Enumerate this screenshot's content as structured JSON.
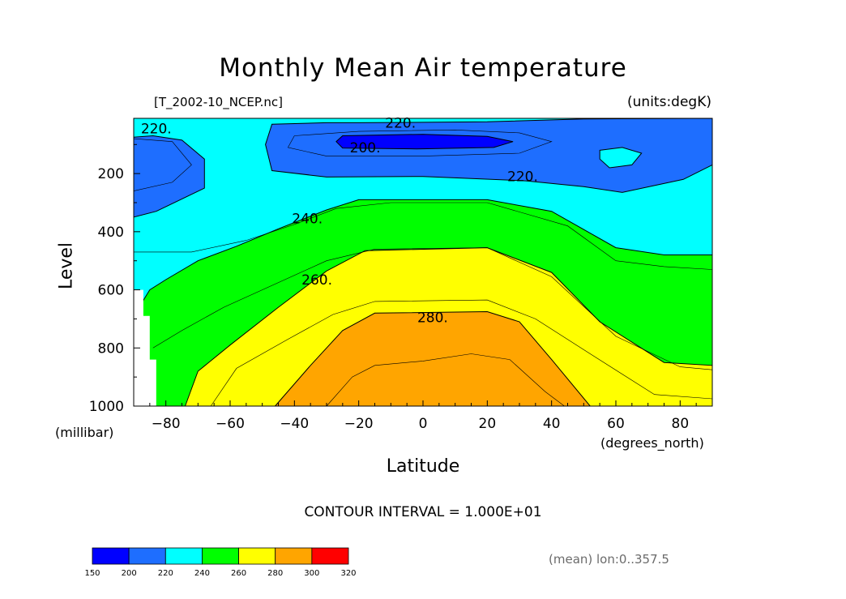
{
  "chart_data": {
    "type": "contour",
    "title": "Monthly Mean Air temperature",
    "dataset_label": "[T_2002-10_NCEP.nc]",
    "units_label": "(units:degK)",
    "xlabel": "Latitude",
    "x_unit_label": "(degrees_north)",
    "ylabel": "Level",
    "y_unit_label": "(millibar)",
    "xlim": [
      -90,
      90
    ],
    "ylim": [
      1000,
      10
    ],
    "xticks": [
      -80,
      -60,
      -40,
      -20,
      0,
      20,
      40,
      60,
      80
    ],
    "yticks": [
      200,
      400,
      600,
      800,
      1000
    ],
    "contour_interval_text": "CONTOUR INTERVAL = 1.000E+01",
    "footnote": "(mean) lon:0..357.5",
    "color_levels": [
      {
        "min": 150,
        "max": 200,
        "color": "#0000ff"
      },
      {
        "min": 200,
        "max": 220,
        "color": "#1e6eff"
      },
      {
        "min": 220,
        "max": 240,
        "color": "#00ffff"
      },
      {
        "min": 240,
        "max": 260,
        "color": "#00ff00"
      },
      {
        "min": 260,
        "max": 280,
        "color": "#ffff00"
      },
      {
        "min": 280,
        "max": 300,
        "color": "#ffa500"
      },
      {
        "min": 300,
        "max": 320,
        "color": "#ff0000"
      }
    ],
    "colorbar_ticks": [
      150,
      200,
      220,
      240,
      260,
      280,
      300,
      320
    ],
    "contour_labels": [
      {
        "text": "220.",
        "x": -83,
        "y": 45
      },
      {
        "text": "220.",
        "x": -7,
        "y": 25
      },
      {
        "text": "200.",
        "x": -18,
        "y": 110
      },
      {
        "text": "220.",
        "x": 31,
        "y": 210
      },
      {
        "text": "240.",
        "x": -36,
        "y": 355
      },
      {
        "text": "260.",
        "x": -33,
        "y": 565
      },
      {
        "text": "280.",
        "x": 3,
        "y": 695
      }
    ],
    "regions": [
      {
        "level": 220,
        "points": [
          [
            -90,
            10
          ],
          [
            90,
            10
          ],
          [
            90,
            1000
          ],
          [
            -90,
            1000
          ]
        ]
      },
      {
        "level": 200,
        "points": [
          [
            -90,
            75
          ],
          [
            -84,
            70
          ],
          [
            -75,
            85
          ],
          [
            -68,
            150
          ],
          [
            -68,
            250
          ],
          [
            -83,
            330
          ],
          [
            -90,
            350
          ]
        ]
      },
      {
        "level": 200,
        "points": [
          [
            -47,
            30
          ],
          [
            -30,
            25
          ],
          [
            -20,
            25
          ],
          [
            20,
            22
          ],
          [
            50,
            12
          ],
          [
            90,
            10
          ],
          [
            90,
            170
          ],
          [
            81,
            220
          ],
          [
            62,
            265
          ],
          [
            50,
            245
          ],
          [
            32,
            225
          ],
          [
            0,
            210
          ],
          [
            -30,
            212
          ],
          [
            -47,
            190
          ],
          [
            -49,
            100
          ]
        ]
      },
      {
        "level": 220,
        "points": [
          [
            55,
            120
          ],
          [
            62,
            110
          ],
          [
            68,
            130
          ],
          [
            65,
            170
          ],
          [
            58,
            180
          ],
          [
            55,
            150
          ]
        ]
      },
      {
        "level": 150,
        "points": [
          [
            -25,
            70
          ],
          [
            0,
            65
          ],
          [
            20,
            72
          ],
          [
            28,
            90
          ],
          [
            22,
            110
          ],
          [
            -2,
            115
          ],
          [
            -25,
            112
          ],
          [
            -27,
            90
          ]
        ]
      },
      {
        "level": 240,
        "points": [
          [
            -90,
            690
          ],
          [
            -85,
            600
          ],
          [
            -80,
            565
          ],
          [
            -70,
            500
          ],
          [
            -58,
            450
          ],
          [
            -45,
            390
          ],
          [
            -30,
            325
          ],
          [
            -20,
            290
          ],
          [
            20,
            290
          ],
          [
            40,
            330
          ],
          [
            60,
            455
          ],
          [
            75,
            480
          ],
          [
            90,
            480
          ],
          [
            90,
            1000
          ],
          [
            -90,
            1000
          ]
        ]
      },
      {
        "level": 260,
        "points": [
          [
            -74,
            1000
          ],
          [
            -70,
            880
          ],
          [
            -60,
            790
          ],
          [
            -45,
            660
          ],
          [
            -30,
            535
          ],
          [
            -18,
            465
          ],
          [
            20,
            455
          ],
          [
            40,
            540
          ],
          [
            55,
            710
          ],
          [
            75,
            850
          ],
          [
            90,
            860
          ],
          [
            90,
            1000
          ]
        ]
      },
      {
        "level": 280,
        "points": [
          [
            -46,
            1000
          ],
          [
            -35,
            860
          ],
          [
            -25,
            740
          ],
          [
            -15,
            680
          ],
          [
            20,
            675
          ],
          [
            30,
            710
          ],
          [
            40,
            840
          ],
          [
            52,
            1000
          ]
        ]
      }
    ],
    "missing": [
      {
        "points": [
          [
            -90,
            600
          ],
          [
            -87,
            600
          ],
          [
            -87,
            690
          ],
          [
            -85,
            690
          ],
          [
            -85,
            840
          ],
          [
            -83,
            840
          ],
          [
            -83,
            1000
          ],
          [
            -90,
            1000
          ]
        ]
      }
    ],
    "contour_lines": [
      {
        "points": [
          [
            -90,
            80
          ],
          [
            -78,
            90
          ],
          [
            -72,
            170
          ],
          [
            -78,
            230
          ],
          [
            -90,
            260
          ]
        ]
      },
      {
        "points": [
          [
            -90,
            470
          ],
          [
            -72,
            470
          ],
          [
            -55,
            430
          ],
          [
            -40,
            375
          ],
          [
            -27,
            320
          ],
          [
            -10,
            300
          ],
          [
            20,
            300
          ],
          [
            45,
            380
          ],
          [
            60,
            500
          ],
          [
            75,
            520
          ],
          [
            90,
            530
          ]
        ]
      },
      {
        "points": [
          [
            -84,
            800
          ],
          [
            -75,
            740
          ],
          [
            -62,
            660
          ],
          [
            -45,
            575
          ],
          [
            -30,
            500
          ],
          [
            -15,
            460
          ],
          [
            20,
            455
          ],
          [
            40,
            555
          ],
          [
            60,
            760
          ],
          [
            80,
            865
          ],
          [
            90,
            875
          ]
        ]
      },
      {
        "points": [
          [
            -66,
            1000
          ],
          [
            -58,
            870
          ],
          [
            -42,
            770
          ],
          [
            -28,
            685
          ],
          [
            -15,
            640
          ],
          [
            20,
            635
          ],
          [
            35,
            700
          ],
          [
            52,
            820
          ],
          [
            72,
            960
          ],
          [
            90,
            975
          ]
        ]
      },
      {
        "points": [
          [
            -30,
            1000
          ],
          [
            -22,
            900
          ],
          [
            -15,
            860
          ],
          [
            0,
            845
          ],
          [
            15,
            820
          ],
          [
            27,
            840
          ],
          [
            38,
            950
          ],
          [
            44,
            1000
          ]
        ]
      },
      {
        "points": [
          [
            -40,
            70
          ],
          [
            -20,
            55
          ],
          [
            10,
            50
          ],
          [
            30,
            60
          ],
          [
            40,
            90
          ],
          [
            30,
            130
          ],
          [
            0,
            140
          ],
          [
            -30,
            140
          ],
          [
            -42,
            110
          ],
          [
            -40,
            70
          ]
        ]
      }
    ]
  }
}
